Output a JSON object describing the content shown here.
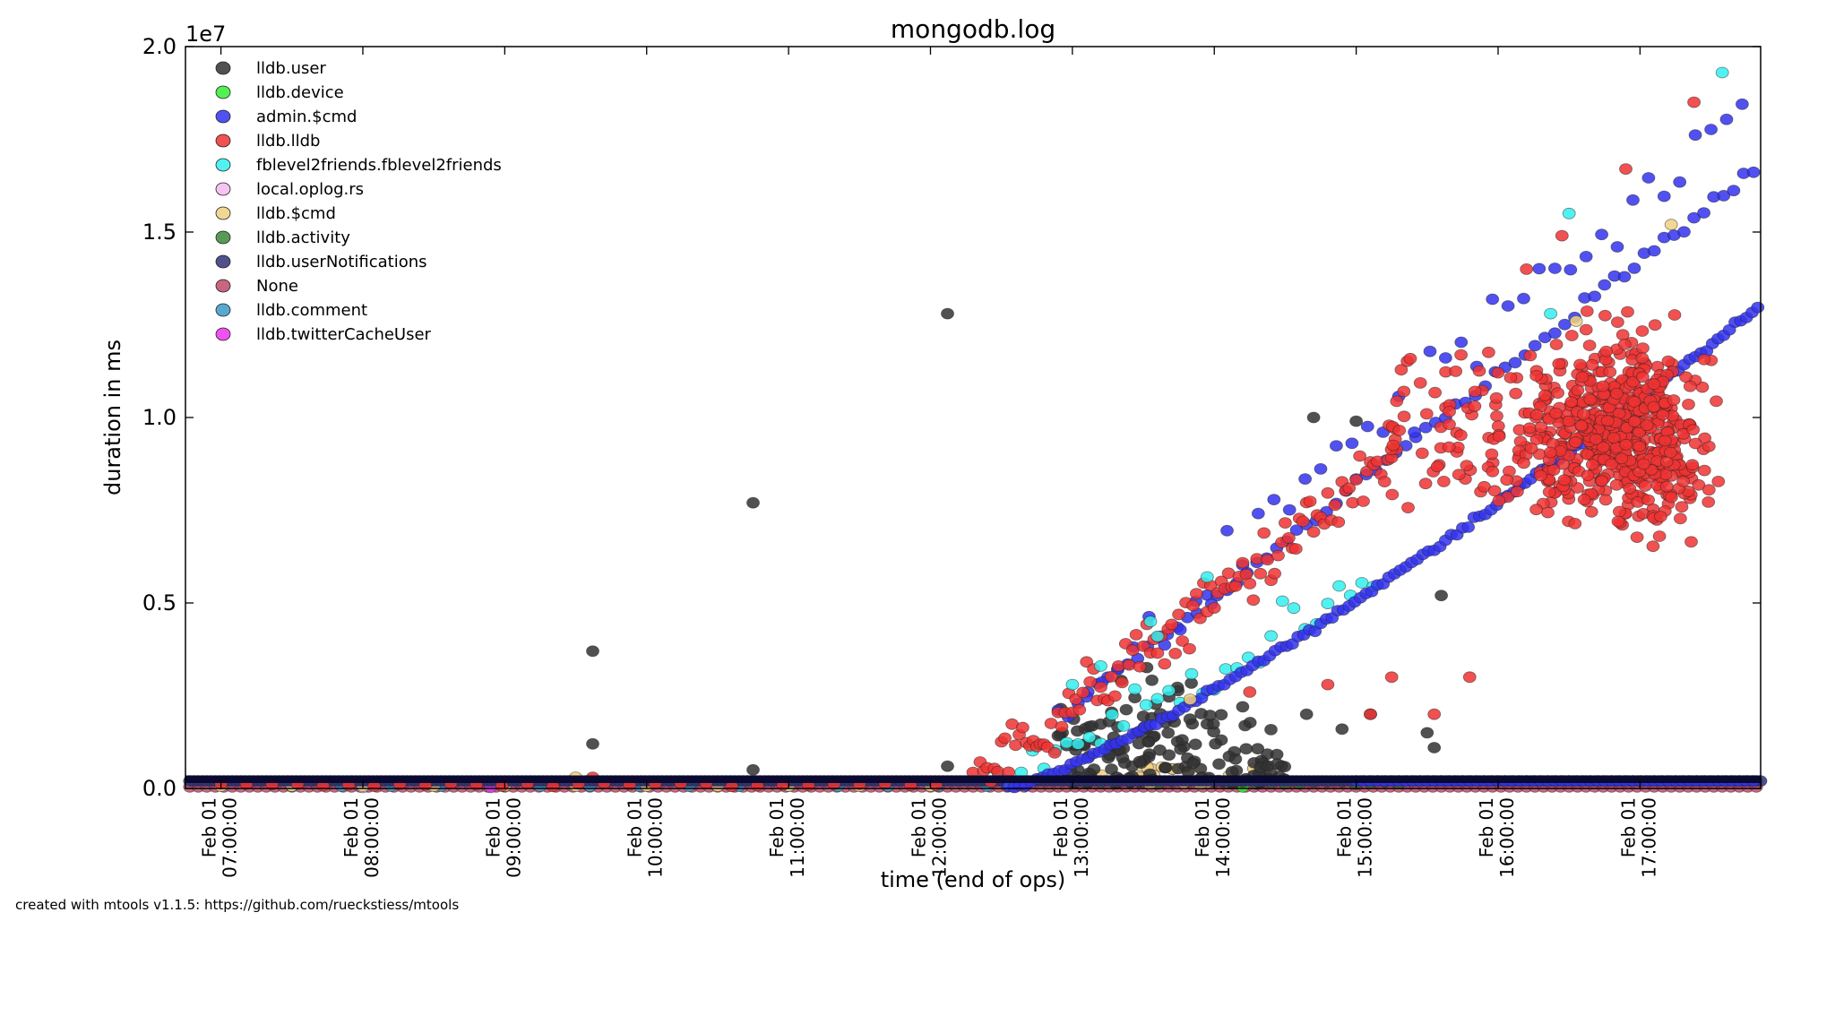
{
  "chart_data": {
    "type": "scatter",
    "title": "mongodb.log",
    "xlabel": "time (end of ops)",
    "ylabel": "duration in ms",
    "y_exponent_label": "1e7",
    "xlim_hours": [
      6.75,
      17.85
    ],
    "ylim": [
      0,
      2.0
    ],
    "y_ticks": [
      {
        "value": 0.0,
        "label": "0.0"
      },
      {
        "value": 0.5,
        "label": "0.5"
      },
      {
        "value": 1.0,
        "label": "1.0"
      },
      {
        "value": 1.5,
        "label": "1.5"
      },
      {
        "value": 2.0,
        "label": "2.0"
      }
    ],
    "x_ticks": [
      {
        "hour": 7,
        "line1": "Feb 01",
        "line2": "07:00:00"
      },
      {
        "hour": 8,
        "line1": "Feb 01",
        "line2": "08:00:00"
      },
      {
        "hour": 9,
        "line1": "Feb 01",
        "line2": "09:00:00"
      },
      {
        "hour": 10,
        "line1": "Feb 01",
        "line2": "10:00:00"
      },
      {
        "hour": 11,
        "line1": "Feb 01",
        "line2": "11:00:00"
      },
      {
        "hour": 12,
        "line1": "Feb 01",
        "line2": "12:00:00"
      },
      {
        "hour": 13,
        "line1": "Feb 01",
        "line2": "13:00:00"
      },
      {
        "hour": 14,
        "line1": "Feb 01",
        "line2": "14:00:00"
      },
      {
        "hour": 15,
        "line1": "Feb 01",
        "line2": "15:00:00"
      },
      {
        "hour": 16,
        "line1": "Feb 01",
        "line2": "16:00:00"
      },
      {
        "hour": 17,
        "line1": "Feb 01",
        "line2": "17:00:00"
      }
    ],
    "legend_position": "top-left",
    "series": [
      {
        "name": "lldb.user",
        "color": "#333333"
      },
      {
        "name": "lldb.device",
        "color": "#33ee33"
      },
      {
        "name": "admin.$cmd",
        "color": "#3333ee"
      },
      {
        "name": "lldb.lldb",
        "color": "#ee3333"
      },
      {
        "name": "fblevel2friends.fblevel2friends",
        "color": "#33eeee"
      },
      {
        "name": "local.oplog.rs",
        "color": "#f5b8f0"
      },
      {
        "name": "lldb.$cmd",
        "color": "#f0d080"
      },
      {
        "name": "lldb.activity",
        "color": "#3a8a3a"
      },
      {
        "name": "lldb.userNotifications",
        "color": "#33337a"
      },
      {
        "name": "None",
        "color": "#c04a6a"
      },
      {
        "name": "lldb.comment",
        "color": "#3a9ac8"
      },
      {
        "name": "lldb.twitterCacheUser",
        "color": "#ee33ee"
      }
    ],
    "highlight_points": [
      {
        "series": "lldb.user",
        "hour": 9.62,
        "value": 0.37
      },
      {
        "series": "lldb.user",
        "hour": 9.62,
        "value": 0.12
      },
      {
        "series": "lldb.user",
        "hour": 10.75,
        "value": 0.77
      },
      {
        "series": "lldb.user",
        "hour": 10.75,
        "value": 0.05
      },
      {
        "series": "lldb.user",
        "hour": 12.12,
        "value": 1.28
      },
      {
        "series": "lldb.user",
        "hour": 12.12,
        "value": 0.06
      },
      {
        "series": "lldb.user",
        "hour": 14.7,
        "value": 1.0
      },
      {
        "series": "lldb.user",
        "hour": 15.0,
        "value": 0.99
      },
      {
        "series": "lldb.user",
        "hour": 15.6,
        "value": 0.52
      },
      {
        "series": "lldb.user",
        "hour": 15.5,
        "value": 0.15
      },
      {
        "series": "lldb.user",
        "hour": 15.55,
        "value": 0.11
      },
      {
        "series": "lldb.user",
        "hour": 15.1,
        "value": 0.2
      },
      {
        "series": "lldb.user",
        "hour": 14.9,
        "value": 0.16
      },
      {
        "series": "lldb.user",
        "hour": 14.65,
        "value": 0.2
      },
      {
        "series": "lldb.user",
        "hour": 14.2,
        "value": 0.22
      },
      {
        "series": "fblevel2friends.fblevel2friends",
        "hour": 17.58,
        "value": 1.93
      },
      {
        "series": "fblevel2friends.fblevel2friends",
        "hour": 16.5,
        "value": 1.55
      },
      {
        "series": "fblevel2friends.fblevel2friends",
        "hour": 16.37,
        "value": 1.28
      },
      {
        "series": "fblevel2friends.fblevel2friends",
        "hour": 13.0,
        "value": 0.28
      },
      {
        "series": "fblevel2friends.fblevel2friends",
        "hour": 13.55,
        "value": 0.45
      },
      {
        "series": "fblevel2friends.fblevel2friends",
        "hour": 13.6,
        "value": 0.41
      },
      {
        "series": "fblevel2friends.fblevel2friends",
        "hour": 13.95,
        "value": 0.57
      },
      {
        "series": "fblevel2friends.fblevel2friends",
        "hour": 13.2,
        "value": 0.33
      },
      {
        "series": "lldb.lldb",
        "hour": 17.38,
        "value": 1.85
      },
      {
        "series": "lldb.lldb",
        "hour": 16.9,
        "value": 1.67
      },
      {
        "series": "lldb.lldb",
        "hour": 16.45,
        "value": 1.49
      },
      {
        "series": "lldb.lldb",
        "hour": 16.2,
        "value": 1.4
      },
      {
        "series": "lldb.lldb",
        "hour": 15.8,
        "value": 0.3
      },
      {
        "series": "lldb.lldb",
        "hour": 15.55,
        "value": 0.2
      },
      {
        "series": "lldb.lldb",
        "hour": 15.25,
        "value": 0.3
      },
      {
        "series": "lldb.lldb",
        "hour": 15.1,
        "value": 0.2
      },
      {
        "series": "lldb.lldb",
        "hour": 14.8,
        "value": 0.28
      },
      {
        "series": "lldb.lldb",
        "hour": 14.25,
        "value": 0.26
      },
      {
        "series": "lldb.lldb",
        "hour": 9.62,
        "value": 0.03
      },
      {
        "series": "lldb.$cmd",
        "hour": 16.55,
        "value": 1.26
      },
      {
        "series": "lldb.$cmd",
        "hour": 17.22,
        "value": 1.52
      },
      {
        "series": "lldb.$cmd",
        "hour": 13.83,
        "value": 0.24
      },
      {
        "series": "lldb.$cmd",
        "hour": 9.5,
        "value": 0.03
      }
    ]
  },
  "footer": {
    "text": "created with mtools v1.1.5: https://github.com/rueckstiess/mtools"
  }
}
